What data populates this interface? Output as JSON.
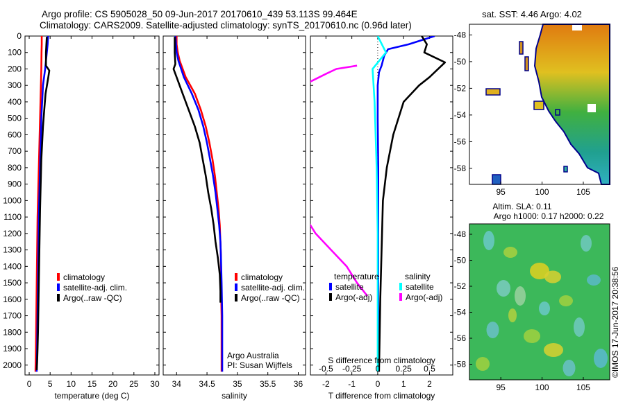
{
  "header": {
    "line1": "Argo profile: CS 5905028_50 09-Jun-2017 20170610_439 53.113S 99.464E",
    "line2": "Climatology: CARS2009. Satellite-adjusted climatology: synTS_20170610.nc (0.96d later)"
  },
  "depth_ticks": [
    "0",
    "100",
    "200",
    "300",
    "400",
    "500",
    "600",
    "700",
    "800",
    "900",
    "1000",
    "1100",
    "1200",
    "1300",
    "1400",
    "1500",
    "1600",
    "1700",
    "1800",
    "1900",
    "2000"
  ],
  "sat_sst_title": "sat. SST: 4.46 Argo: 4.02",
  "altim_title_1": "Altim. SLA: 0.11",
  "altim_title_2": "Argo h1000: 0.17 h2000: 0.22",
  "credit": "©IMOS 17-Jun-2017 20:38:56",
  "colors": {
    "climatology": "#ff0000",
    "satellite": "#0000ff",
    "argo": "#000000",
    "sal_satellite": "#00ffff",
    "sal_argo": "#ff00ff"
  },
  "chart_data": [
    {
      "type": "line",
      "xlabel": "temperature (deg C)",
      "ylabel": "",
      "xlim": [
        -1,
        31
      ],
      "ylim": [
        2060,
        0
      ],
      "xticks": [
        "0",
        "5",
        "10",
        "15",
        "20",
        "25",
        "30"
      ],
      "legend": {
        "position": "center",
        "labels": [
          "climatology",
          "satellite-adj. clim.",
          "Argo(..raw -QC)"
        ]
      },
      "series": [
        {
          "name": "climatology",
          "color": "#ff0000",
          "x": [
            3.0,
            3.0,
            2.95,
            2.9,
            2.8,
            2.7,
            2.6,
            2.5,
            2.4,
            2.3,
            2.2,
            2.1,
            2.0,
            1.9,
            1.8,
            1.7,
            1.6,
            1.5
          ],
          "y": [
            0,
            50,
            100,
            200,
            300,
            400,
            500,
            600,
            700,
            800,
            900,
            1000,
            1100,
            1300,
            1500,
            1700,
            1900,
            2040
          ]
        },
        {
          "name": "satellite-adj. clim.",
          "color": "#0000ff",
          "x": [
            4.5,
            4.4,
            4.2,
            3.8,
            3.3,
            3.1,
            2.9,
            2.8,
            2.7,
            2.6,
            2.5,
            2.4,
            2.3,
            2.2,
            2.1,
            2.0,
            1.9,
            1.8
          ],
          "y": [
            0,
            50,
            100,
            200,
            300,
            400,
            500,
            600,
            700,
            800,
            900,
            1000,
            1100,
            1300,
            1500,
            1700,
            1900,
            2040
          ]
        },
        {
          "name": "Argo(..raw -QC)",
          "color": "#000000",
          "x": [
            4.2,
            4.1,
            4.0,
            4.0,
            4.8,
            4.5,
            3.9,
            3.6,
            3.3,
            3.1,
            2.9,
            2.8,
            2.7,
            2.6,
            2.5,
            2.4,
            2.3,
            2.2,
            2.1,
            2.0,
            1.9,
            1.8
          ],
          "y": [
            5,
            50,
            100,
            180,
            210,
            260,
            350,
            450,
            550,
            650,
            750,
            850,
            950,
            1050,
            1200,
            1350,
            1500,
            1650,
            1800,
            1900,
            1980,
            2030
          ]
        }
      ]
    },
    {
      "type": "line",
      "xlabel": "salinity",
      "ylabel": "",
      "xlim": [
        33.78,
        36.12
      ],
      "ylim": [
        2060,
        0
      ],
      "xticks": [
        "34",
        "34.5",
        "35",
        "35.5",
        "36"
      ],
      "legend": {
        "position": "center",
        "labels": [
          "climatology",
          "satellite-adj. clim.",
          "Argo(..raw -QC)"
        ]
      },
      "annotations": [
        "Argo Australia",
        "PI: Susan Wijffels"
      ],
      "series": [
        {
          "name": "climatology",
          "color": "#ff0000",
          "x": [
            34.0,
            34.0,
            34.02,
            34.05,
            34.15,
            34.3,
            34.4,
            34.48,
            34.54,
            34.59,
            34.63,
            34.66,
            34.69,
            34.71,
            34.72,
            34.73,
            34.73,
            34.74,
            34.74,
            34.74
          ],
          "y": [
            0,
            50,
            100,
            150,
            250,
            350,
            450,
            550,
            650,
            750,
            850,
            950,
            1050,
            1150,
            1250,
            1350,
            1500,
            1700,
            1900,
            2040
          ]
        },
        {
          "name": "satellite-adj. clim.",
          "color": "#0000ff",
          "x": [
            33.98,
            33.99,
            34.0,
            34.03,
            34.12,
            34.25,
            34.36,
            34.44,
            34.5,
            34.55,
            34.6,
            34.64,
            34.67,
            34.7,
            34.72,
            34.73,
            34.74,
            34.75,
            34.75,
            34.75
          ],
          "y": [
            0,
            50,
            100,
            150,
            250,
            350,
            450,
            550,
            650,
            750,
            850,
            950,
            1050,
            1150,
            1250,
            1350,
            1500,
            1700,
            1900,
            2040
          ]
        },
        {
          "name": "Argo(..raw -QC)",
          "color": "#000000",
          "x": [
            33.97,
            33.97,
            33.98,
            33.95,
            34.0,
            34.1,
            34.2,
            34.3,
            34.38,
            34.43,
            34.48,
            34.52,
            34.57,
            34.61,
            34.64,
            34.68,
            34.71,
            34.72,
            34.72
          ],
          "y": [
            5,
            100,
            170,
            200,
            250,
            350,
            450,
            550,
            650,
            750,
            850,
            950,
            1050,
            1150,
            1250,
            1350,
            1450,
            1550,
            1620
          ]
        }
      ]
    },
    {
      "type": "line",
      "xlabel": "T difference from climatology",
      "xlabel_top": "S difference from climatology",
      "ylabel": "",
      "xlim": [
        -2.6,
        2.9
      ],
      "ylim": [
        2060,
        0
      ],
      "xticks": [
        "-2",
        "-1",
        "0",
        "1",
        "2"
      ],
      "xticks_top": [
        "-0.5",
        "-0.25",
        "0",
        "0.25",
        "0.5"
      ],
      "legend": {
        "position": "center",
        "title_left": "temperature",
        "title_right": "salinity",
        "labels": [
          "satellite",
          "Argo(-adj)",
          "satellite",
          "Argo(-adj)"
        ]
      },
      "series": [
        {
          "name": "satellite",
          "group": "temperature",
          "color": "#0000ff",
          "x": [
            2.2,
            1.2,
            0.4,
            0.25,
            0.15,
            0.05,
            0.0,
            0.0,
            0.02,
            0.02,
            0.02,
            0.02,
            0.02
          ],
          "y": [
            0,
            50,
            80,
            120,
            180,
            220,
            300,
            500,
            800,
            1100,
            1400,
            1800,
            2040
          ]
        },
        {
          "name": "Argo(-adj)",
          "group": "temperature",
          "color": "#000000",
          "x": [
            1.7,
            1.9,
            1.8,
            2.6,
            2.0,
            1.6,
            1.0,
            0.6,
            0.35,
            0.2,
            0.15,
            0.1,
            0.05
          ],
          "y": [
            0,
            50,
            100,
            160,
            250,
            300,
            400,
            600,
            800,
            1000,
            1300,
            1600,
            2040
          ]
        },
        {
          "name": "satellite",
          "group": "salinity",
          "color": "#00ffff",
          "x": [
            0.0,
            0.08,
            -0.05,
            -0.03,
            -0.01,
            0.0,
            0.0,
            0.0
          ],
          "y": [
            0,
            100,
            200,
            400,
            800,
            1200,
            1600,
            2040
          ]
        },
        {
          "name": "Argo(-adj)",
          "group": "salinity",
          "color": "#ff00ff",
          "x": [
            -0.2,
            -0.4,
            -0.5,
            -0.66,
            -0.8,
            -0.9,
            -0.9,
            -0.8,
            -0.6,
            -0.45,
            -0.3,
            -0.2,
            -0.1
          ],
          "y": [
            180,
            200,
            230,
            280,
            400,
            600,
            800,
            1000,
            1200,
            1300,
            1400,
            1500,
            1580
          ]
        }
      ]
    },
    {
      "type": "heatmap",
      "title": "sat. SST: 4.46 Argo: 4.02",
      "xticks": [
        "95",
        "100",
        "105"
      ],
      "yticks": [
        "-48",
        "-50",
        "-52",
        "-54",
        "-56",
        "-58"
      ],
      "xlim": [
        91.2,
        108.2
      ],
      "ylim": [
        -59.2,
        -47.2
      ]
    },
    {
      "type": "heatmap",
      "title": "Altim. SLA: 0.11",
      "subtitle": "Argo h1000: 0.17 h2000: 0.22",
      "xticks": [
        "95",
        "100",
        "105"
      ],
      "yticks": [
        "-48",
        "-50",
        "-52",
        "-54",
        "-56",
        "-58"
      ],
      "xlim": [
        91.2,
        108.2
      ],
      "ylim": [
        -59.2,
        -47.2
      ]
    }
  ]
}
